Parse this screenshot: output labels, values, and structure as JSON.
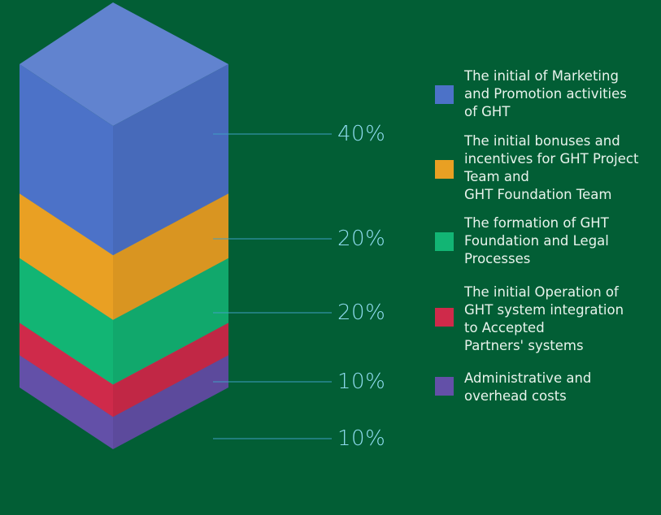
{
  "chart_data": {
    "type": "bar",
    "title": "",
    "categories": [
      "The initial of Marketing\nand Promotion activities\n of GHT",
      "The initial bonuses and\nincentives for GHT Project\nTeam and\nGHT Foundation Team",
      "The formation of GHT\nFoundation and Legal\nProcesses",
      "The initial Operation of\nGHT system integration\nto Accepted\nPartners' systems",
      "Administrative and\noverhead costs"
    ],
    "values": [
      40,
      20,
      20,
      10,
      10
    ],
    "value_labels": [
      "40%",
      "20%",
      "20%",
      "10%",
      "10%"
    ],
    "unit": "%",
    "colors": [
      "#4c72c8",
      "#e9a023",
      "#12b574",
      "#cf2a4a",
      "#6350a8"
    ],
    "legend_position": "right"
  }
}
